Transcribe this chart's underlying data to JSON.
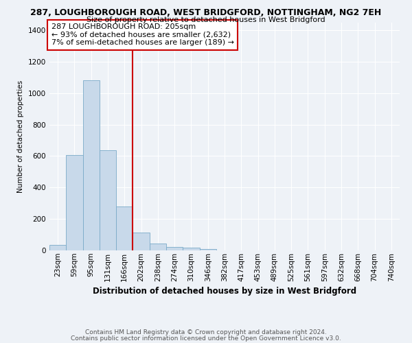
{
  "title1": "287, LOUGHBOROUGH ROAD, WEST BRIDGFORD, NOTTINGHAM, NG2 7EH",
  "title2": "Size of property relative to detached houses in West Bridgford",
  "xlabel": "Distribution of detached houses by size in West Bridgford",
  "ylabel": "Number of detached properties",
  "categories": [
    "23sqm",
    "59sqm",
    "95sqm",
    "131sqm",
    "166sqm",
    "202sqm",
    "238sqm",
    "274sqm",
    "310sqm",
    "346sqm",
    "382sqm",
    "417sqm",
    "453sqm",
    "489sqm",
    "525sqm",
    "561sqm",
    "597sqm",
    "632sqm",
    "668sqm",
    "704sqm",
    "740sqm"
  ],
  "values": [
    35,
    605,
    1080,
    635,
    280,
    115,
    45,
    22,
    18,
    10,
    0,
    0,
    0,
    0,
    0,
    0,
    0,
    0,
    0,
    0,
    0
  ],
  "bar_color": "#c8d9ea",
  "bar_edge_color": "#7aaac8",
  "vline_x_index": 5,
  "vline_color": "#cc0000",
  "annotation_box_color": "#cc0000",
  "annotation_lines": [
    "287 LOUGHBOROUGH ROAD: 205sqm",
    "← 93% of detached houses are smaller (2,632)",
    "7% of semi-detached houses are larger (189) →"
  ],
  "ylim": [
    0,
    1450
  ],
  "yticks": [
    0,
    200,
    400,
    600,
    800,
    1000,
    1200,
    1400
  ],
  "footer1": "Contains HM Land Registry data © Crown copyright and database right 2024.",
  "footer2": "Contains public sector information licensed under the Open Government Licence v3.0.",
  "background_color": "#eef2f7",
  "grid_color": "#ffffff",
  "title1_fontsize": 9,
  "title2_fontsize": 8,
  "ylabel_fontsize": 7.5,
  "xlabel_fontsize": 8.5,
  "tick_fontsize": 7.5,
  "annotation_fontsize": 8,
  "footer_fontsize": 6.5
}
